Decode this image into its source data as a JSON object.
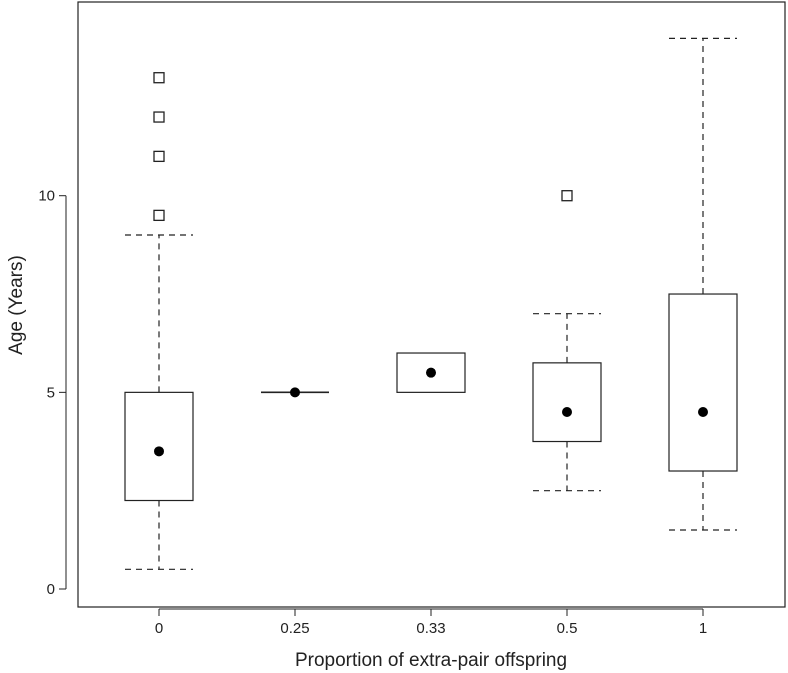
{
  "chart_data": {
    "type": "boxplot",
    "title": "",
    "xlabel": "Proportion of extra-pair offspring",
    "ylabel": "Age (Years)",
    "ylim": [
      0,
      15
    ],
    "y_ticks": [
      0,
      5,
      10
    ],
    "grid": false,
    "categories": [
      "0",
      "0.25",
      "0.33",
      "0.5",
      "1"
    ],
    "boxes": [
      {
        "category": "0",
        "whisker_low": 0.5,
        "q1": 2.25,
        "q3": 5.0,
        "whisker_high": 9.0,
        "median_dot": 3.5,
        "outliers": [
          9.5,
          11,
          12,
          13
        ]
      },
      {
        "category": "0.25",
        "whisker_low": 5.0,
        "q1": 5.0,
        "q3": 5.0,
        "whisker_high": 5.0,
        "median_dot": 5.0,
        "outliers": []
      },
      {
        "category": "0.33",
        "whisker_low": 5.0,
        "q1": 5.0,
        "q3": 6.0,
        "whisker_high": 6.0,
        "median_dot": 5.5,
        "outliers": []
      },
      {
        "category": "0.5",
        "whisker_low": 2.5,
        "q1": 3.75,
        "q3": 5.75,
        "whisker_high": 7.0,
        "median_dot": 4.5,
        "outliers": [
          10
        ]
      },
      {
        "category": "1",
        "whisker_low": 1.5,
        "q1": 3.0,
        "q3": 7.5,
        "whisker_high": 14.0,
        "median_dot": 4.5,
        "outliers": []
      }
    ]
  }
}
